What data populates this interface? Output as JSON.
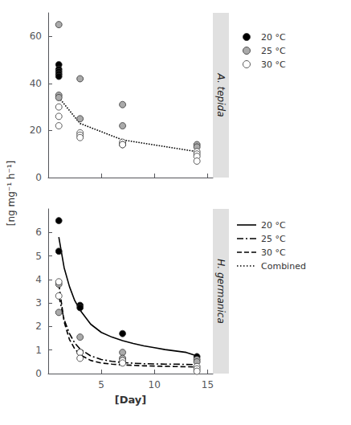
{
  "chart_data": {
    "type": "scatter",
    "xlabel": "[Day]",
    "ylabel": "[ng mg⁻¹ h⁻¹]",
    "xlim": [
      0,
      15.5
    ],
    "xticks": [
      5,
      10,
      15
    ],
    "grid": false,
    "legend": "right",
    "panels": [
      {
        "title": "A. tepida",
        "ylim": [
          0,
          70
        ],
        "yticks": [
          0,
          20,
          40,
          60
        ],
        "tick_labels": "y",
        "series": [
          {
            "name": "20 °C",
            "type": "scatter",
            "marker": "circle",
            "color": "#000000",
            "x": [
              1,
              1,
              1,
              1,
              1
            ],
            "values": [
              48,
              46,
              45,
              44,
              43
            ]
          },
          {
            "name": "25 °C",
            "type": "scatter",
            "marker": "circle",
            "color": "#aaaaaa",
            "x": [
              1,
              1,
              1,
              3,
              3,
              7,
              7,
              14,
              14
            ],
            "values": [
              65,
              35,
              34,
              42,
              25,
              31,
              22,
              14,
              13
            ]
          },
          {
            "name": "30 °C",
            "type": "scatter",
            "marker": "circle",
            "color": "#ffffff",
            "x": [
              1,
              1,
              1,
              3,
              3,
              3,
              7,
              7,
              7,
              14,
              14,
              14,
              14
            ],
            "values": [
              30,
              26,
              22,
              19,
              18,
              17,
              15,
              14,
              14,
              11,
              10,
              9,
              7
            ]
          },
          {
            "name": "Combined",
            "type": "line",
            "line_style": "dotted",
            "color": "#000000",
            "x": [
              1,
              3,
              7,
              14
            ],
            "values": [
              34,
              23,
              16,
              11
            ]
          }
        ]
      },
      {
        "title": "H. germanica",
        "ylim": [
          0,
          7
        ],
        "yticks": [
          0,
          1,
          2,
          3,
          4,
          5,
          6
        ],
        "series": [
          {
            "name": "20 °C",
            "type": "scatter",
            "marker": "circle",
            "color": "#000000",
            "x": [
              1,
              1,
              3,
              3,
              7,
              14
            ],
            "values": [
              6.5,
              5.2,
              2.9,
              2.8,
              1.7,
              0.72
            ]
          },
          {
            "name": "25 °C",
            "type": "scatter",
            "marker": "circle",
            "color": "#aaaaaa",
            "x": [
              1,
              1,
              3,
              3,
              7,
              7,
              14,
              14
            ],
            "values": [
              3.8,
              2.6,
              1.55,
              0.9,
              0.9,
              0.65,
              0.6,
              0.5
            ]
          },
          {
            "name": "30 °C",
            "type": "scatter",
            "marker": "circle",
            "color": "#ffffff",
            "x": [
              1,
              1,
              3,
              3,
              7,
              7,
              14,
              14,
              14
            ],
            "values": [
              3.9,
              3.3,
              0.9,
              0.65,
              0.55,
              0.45,
              0.3,
              0.2,
              0.1
            ]
          },
          {
            "name": "20 °C",
            "type": "line",
            "line_style": "solid",
            "color": "#000000",
            "x": [
              1.0,
              1.5,
              2.0,
              2.5,
              3.0,
              4.0,
              5.0,
              6.0,
              7.0,
              8.0,
              9.0,
              10.0,
              11.0,
              12.0,
              13.0,
              14.0
            ],
            "values": [
              5.8,
              4.5,
              3.7,
              3.1,
              2.7,
              2.1,
              1.75,
              1.55,
              1.4,
              1.28,
              1.18,
              1.1,
              1.02,
              0.96,
              0.9,
              0.75
            ]
          },
          {
            "name": "25 °C",
            "type": "line",
            "line_style": "dashdot",
            "color": "#000000",
            "x": [
              1.0,
              1.5,
              2.0,
              2.5,
              3.0,
              4.0,
              5.0,
              6.0,
              7.0,
              8.0,
              9.0,
              10.0,
              11.0,
              12.0,
              13.0,
              14.0
            ],
            "values": [
              3.3,
              2.3,
              1.7,
              1.3,
              1.05,
              0.75,
              0.6,
              0.52,
              0.47,
              0.44,
              0.42,
              0.41,
              0.4,
              0.4,
              0.39,
              0.38
            ]
          },
          {
            "name": "30 °C",
            "type": "line",
            "line_style": "dashed",
            "color": "#000000",
            "x": [
              1.0,
              1.5,
              2.0,
              2.5,
              3.0,
              4.0,
              5.0,
              6.0,
              7.0,
              8.0,
              9.0,
              10.0,
              11.0,
              12.0,
              13.0,
              14.0
            ],
            "values": [
              3.8,
              2.2,
              1.45,
              1.05,
              0.8,
              0.56,
              0.45,
              0.4,
              0.37,
              0.35,
              0.33,
              0.32,
              0.31,
              0.3,
              0.29,
              0.28
            ]
          }
        ]
      }
    ]
  }
}
